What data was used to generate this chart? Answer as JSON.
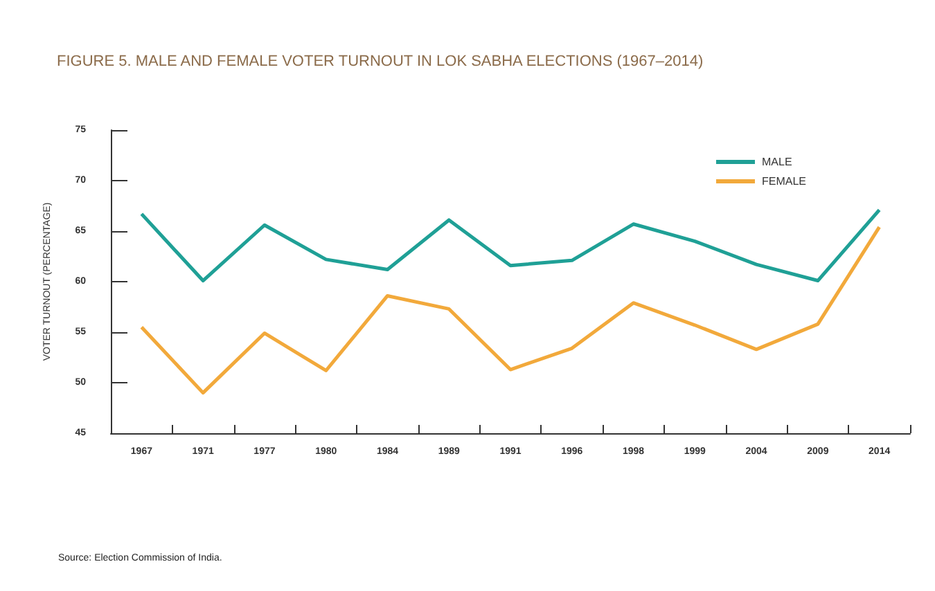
{
  "chart_data": {
    "type": "line",
    "title": "FIGURE 5. MALE AND FEMALE VOTER TURNOUT IN LOK SABHA ELECTIONS (1967–2014)",
    "ylabel": "VOTER TURNOUT (PERCENTAGE)",
    "categories": [
      "1967",
      "1971",
      "1977",
      "1980",
      "1984",
      "1989",
      "1991",
      "1996",
      "1998",
      "1999",
      "2004",
      "2009",
      "2014"
    ],
    "series": [
      {
        "name": "MALE",
        "color": "#1fa096",
        "values": [
          66.7,
          60.1,
          65.6,
          62.2,
          61.2,
          66.1,
          61.6,
          62.1,
          65.7,
          64.0,
          61.7,
          60.1,
          67.1
        ]
      },
      {
        "name": "FEMALE",
        "color": "#f2a93b",
        "values": [
          55.5,
          49.0,
          54.9,
          51.2,
          58.6,
          57.3,
          51.3,
          53.4,
          57.9,
          55.7,
          53.3,
          55.8,
          65.4
        ]
      }
    ],
    "ylim": [
      45,
      75
    ],
    "yticks": [
      45,
      50,
      55,
      60,
      65,
      70,
      75
    ],
    "grid": false,
    "legend": "top right",
    "marker": "none",
    "line_style": "solid",
    "annotations": [
      "Source: Election Commission of India."
    ]
  }
}
